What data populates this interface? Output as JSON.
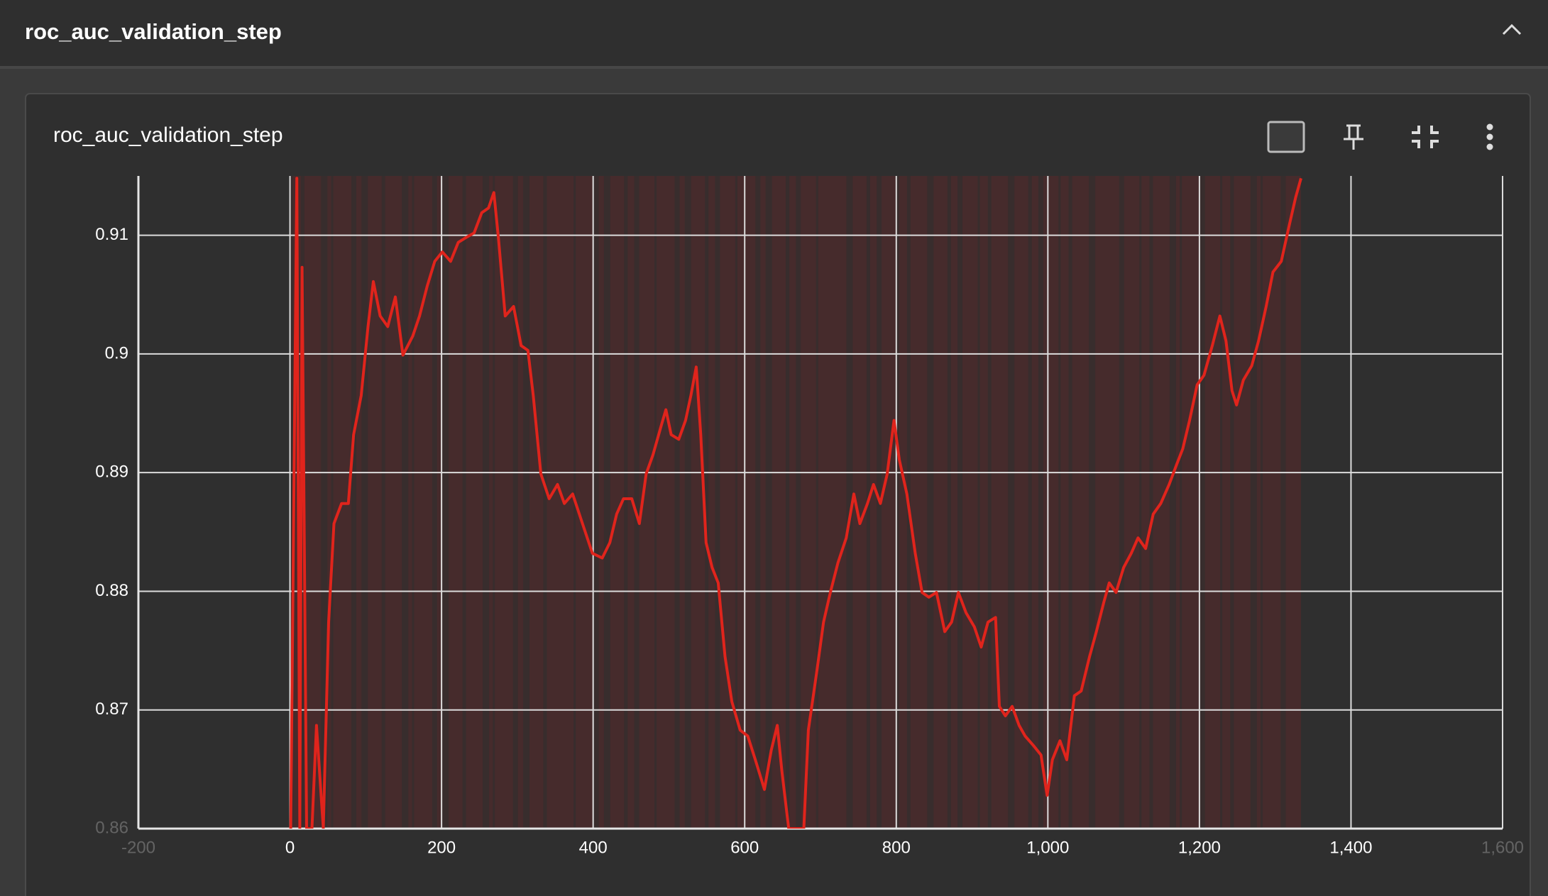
{
  "header": {
    "title": "roc_auc_validation_step"
  },
  "card": {
    "title": "roc_auc_validation_step"
  },
  "chart_data": {
    "type": "line",
    "x": [
      1,
      9,
      13,
      16,
      22,
      29,
      35,
      44,
      51,
      58,
      68,
      77,
      84,
      94,
      103,
      110,
      119,
      129,
      139,
      149,
      162,
      171,
      181,
      191,
      201,
      212,
      222,
      232,
      243,
      253,
      262,
      269,
      275,
      284,
      295,
      305,
      314,
      321,
      331,
      342,
      353,
      362,
      373,
      386,
      399,
      412,
      422,
      431,
      440,
      451,
      461,
      470,
      479,
      490,
      496,
      503,
      513,
      522,
      529,
      536,
      542,
      549,
      557,
      565,
      574,
      583,
      594,
      604,
      614,
      626,
      635,
      643,
      649,
      658,
      678,
      684,
      695,
      704,
      713,
      723,
      734,
      744,
      752,
      762,
      770,
      779,
      788,
      797,
      804,
      814,
      825,
      834,
      843,
      853,
      864,
      873,
      882,
      892,
      903,
      912,
      921,
      931,
      936,
      944,
      953,
      962,
      970,
      981,
      991,
      999,
      1006,
      1016,
      1025,
      1035,
      1044,
      1055,
      1064,
      1074,
      1081,
      1090,
      1100,
      1110,
      1119,
      1129,
      1139,
      1149,
      1160,
      1170,
      1178,
      1187,
      1197,
      1206,
      1217,
      1227,
      1235,
      1243,
      1249,
      1258,
      1269,
      1278,
      1288,
      1297,
      1308,
      1318,
      1327,
      1334
    ],
    "series": [
      {
        "name": "roc_auc_validation_step",
        "color": "#e0241c",
        "values": [
          0.86,
          0.9148,
          0.86,
          0.9073,
          0.86,
          0.86,
          0.8687,
          0.86,
          0.8774,
          0.8857,
          0.8874,
          0.8874,
          0.8932,
          0.8965,
          0.9023,
          0.9061,
          0.9032,
          0.9023,
          0.9048,
          0.8999,
          0.9015,
          0.9032,
          0.9057,
          0.9078,
          0.9086,
          0.9078,
          0.9094,
          0.9098,
          0.9102,
          0.9119,
          0.9123,
          0.9136,
          0.9098,
          0.9032,
          0.904,
          0.9007,
          0.9003,
          0.8965,
          0.8899,
          0.8878,
          0.889,
          0.8874,
          0.8882,
          0.8857,
          0.8832,
          0.8828,
          0.8841,
          0.8865,
          0.8878,
          0.8878,
          0.8857,
          0.8899,
          0.8915,
          0.894,
          0.8953,
          0.8932,
          0.8928,
          0.8944,
          0.8965,
          0.8989,
          0.8932,
          0.8841,
          0.882,
          0.8807,
          0.8745,
          0.8707,
          0.8683,
          0.8678,
          0.8658,
          0.8633,
          0.8666,
          0.8687,
          0.8649,
          0.86,
          0.86,
          0.8683,
          0.8732,
          0.8774,
          0.8799,
          0.8824,
          0.8845,
          0.8882,
          0.8857,
          0.8874,
          0.889,
          0.8874,
          0.8899,
          0.8944,
          0.8911,
          0.8882,
          0.8832,
          0.8799,
          0.8795,
          0.8799,
          0.8766,
          0.8774,
          0.8799,
          0.8782,
          0.877,
          0.8753,
          0.8774,
          0.8778,
          0.8703,
          0.8695,
          0.8703,
          0.8687,
          0.8678,
          0.867,
          0.8662,
          0.8628,
          0.8658,
          0.8674,
          0.8658,
          0.8712,
          0.8716,
          0.8745,
          0.8766,
          0.8791,
          0.8807,
          0.8799,
          0.882,
          0.8832,
          0.8845,
          0.8836,
          0.8865,
          0.8874,
          0.889,
          0.8907,
          0.892,
          0.8944,
          0.8974,
          0.8982,
          0.9007,
          0.9032,
          0.9011,
          0.8969,
          0.8957,
          0.8978,
          0.899,
          0.9011,
          0.904,
          0.9069,
          0.9078,
          0.9107,
          0.9132,
          0.9148
        ]
      }
    ],
    "xlim": [
      -200,
      1600
    ],
    "xticks": [
      -200,
      0,
      200,
      400,
      600,
      800,
      {
        "value": 1000,
        "label": "1,000"
      },
      {
        "value": 1200,
        "label": "1,200"
      },
      {
        "value": 1400,
        "label": "1,400"
      },
      {
        "value": 1600,
        "label": "1,600"
      }
    ],
    "ylim": [
      0.86,
      0.915
    ],
    "yticks": [
      0.86,
      0.87,
      0.88,
      0.89,
      0.9,
      0.91
    ],
    "grid": true
  }
}
